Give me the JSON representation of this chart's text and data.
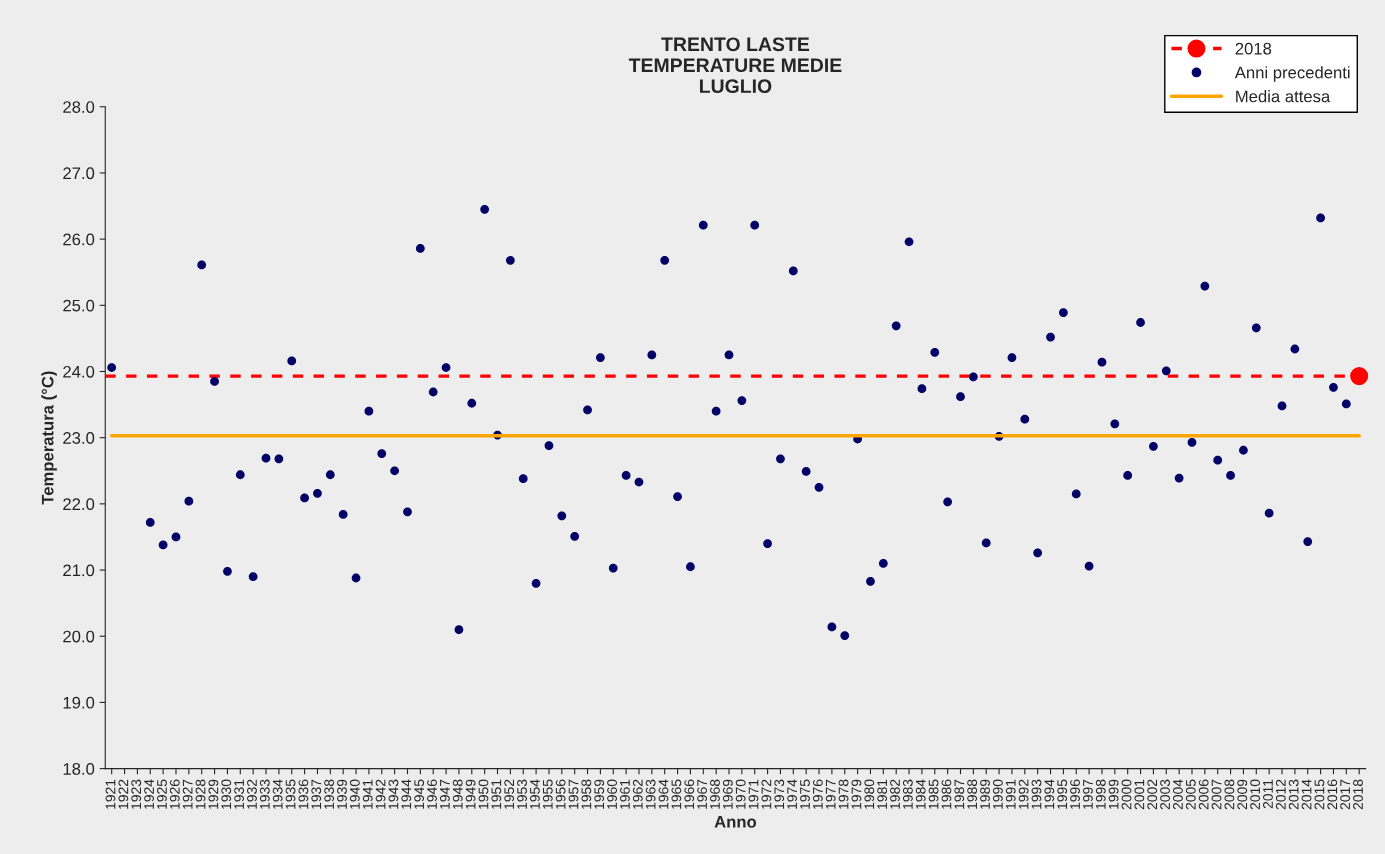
{
  "chart_data": {
    "type": "scatter",
    "title": "TRENTO LASTE\nTEMPERATURE MEDIE\nLUGLIO",
    "xlabel": "Anno",
    "ylabel": "Temperatura (°C)",
    "categories": [
      "1921",
      "1922",
      "1923",
      "1924",
      "1925",
      "1926",
      "1927",
      "1928",
      "1929",
      "1930",
      "1931",
      "1932",
      "1933",
      "1934",
      "1935",
      "1936",
      "1937",
      "1938",
      "1939",
      "1940",
      "1941",
      "1942",
      "1943",
      "1944",
      "1945",
      "1946",
      "1947",
      "1948",
      "1949",
      "1950",
      "1951",
      "1952",
      "1953",
      "1954",
      "1955",
      "1956",
      "1957",
      "1958",
      "1959",
      "1960",
      "1961",
      "1962",
      "1963",
      "1964",
      "1965",
      "1966",
      "1967",
      "1968",
      "1969",
      "1970",
      "1971",
      "1972",
      "1973",
      "1974",
      "1975",
      "1976",
      "1977",
      "1978",
      "1979",
      "1980",
      "1981",
      "1982",
      "1983",
      "1984",
      "1985",
      "1986",
      "1987",
      "1988",
      "1989",
      "1990",
      "1991",
      "1992",
      "1993",
      "1994",
      "1995",
      "1996",
      "1997",
      "1998",
      "1999",
      "2000",
      "2001",
      "2002",
      "2003",
      "2004",
      "2005",
      "2006",
      "2007",
      "2008",
      "2009",
      "2010",
      "2011",
      "2012",
      "2013",
      "2014",
      "2015",
      "2016",
      "2017",
      "2018"
    ],
    "series": [
      {
        "name": "2018",
        "type": "line",
        "color": "#ff0000",
        "line_style": "dashed",
        "marker": "circle",
        "values": [
          null,
          null,
          null,
          null,
          null,
          null,
          null,
          null,
          null,
          null,
          null,
          null,
          null,
          null,
          null,
          null,
          null,
          null,
          null,
          null,
          null,
          null,
          null,
          null,
          null,
          null,
          null,
          null,
          null,
          null,
          null,
          null,
          null,
          null,
          null,
          null,
          null,
          null,
          null,
          null,
          null,
          null,
          null,
          null,
          null,
          null,
          null,
          null,
          null,
          null,
          null,
          null,
          null,
          null,
          null,
          null,
          null,
          null,
          null,
          null,
          null,
          null,
          null,
          null,
          null,
          null,
          null,
          null,
          null,
          null,
          null,
          null,
          null,
          null,
          null,
          null,
          null,
          null,
          null,
          null,
          null,
          null,
          null,
          null,
          null,
          null,
          null,
          null,
          null,
          null,
          null,
          null,
          null,
          null,
          null,
          null,
          null,
          23.93
        ]
      },
      {
        "name": "Anni precedenti",
        "color": "#000066",
        "marker": "circle",
        "values": [
          24.06,
          null,
          null,
          21.72,
          21.38,
          21.5,
          22.04,
          25.61,
          23.85,
          20.98,
          22.44,
          20.9,
          22.69,
          22.68,
          24.16,
          22.09,
          22.16,
          22.44,
          21.84,
          20.88,
          23.4,
          22.76,
          22.5,
          21.88,
          25.86,
          23.69,
          24.06,
          20.1,
          23.52,
          26.45,
          23.04,
          25.68,
          22.38,
          20.8,
          22.88,
          21.82,
          21.51,
          23.42,
          24.21,
          21.03,
          22.43,
          22.33,
          24.25,
          25.68,
          22.11,
          21.05,
          26.21,
          23.4,
          24.25,
          23.56,
          26.21,
          21.4,
          22.68,
          25.52,
          22.49,
          22.25,
          20.14,
          20.01,
          22.98,
          20.83,
          21.1,
          24.69,
          25.96,
          23.74,
          24.29,
          22.03,
          23.62,
          23.92,
          21.41,
          23.02,
          24.21,
          23.28,
          21.26,
          24.52,
          24.89,
          22.15,
          21.06,
          24.14,
          23.21,
          22.43,
          24.74,
          22.87,
          24.01,
          22.39,
          22.93,
          25.29,
          22.66,
          22.43,
          22.81,
          24.66,
          21.86,
          23.48,
          24.34,
          21.43,
          26.32,
          23.76,
          23.51,
          null
        ]
      },
      {
        "name": "Media attesa",
        "type": "line",
        "color": "#ffa500",
        "line_style": "solid",
        "marker": "none",
        "values": [
          23.03,
          23.03,
          23.03,
          23.03,
          23.03,
          23.03,
          23.03,
          23.03,
          23.03,
          23.03,
          23.03,
          23.03,
          23.03,
          23.03,
          23.03,
          23.03,
          23.03,
          23.03,
          23.03,
          23.03,
          23.03,
          23.03,
          23.03,
          23.03,
          23.03,
          23.03,
          23.03,
          23.03,
          23.03,
          23.03,
          23.03,
          23.03,
          23.03,
          23.03,
          23.03,
          23.03,
          23.03,
          23.03,
          23.03,
          23.03,
          23.03,
          23.03,
          23.03,
          23.03,
          23.03,
          23.03,
          23.03,
          23.03,
          23.03,
          23.03,
          23.03,
          23.03,
          23.03,
          23.03,
          23.03,
          23.03,
          23.03,
          23.03,
          23.03,
          23.03,
          23.03,
          23.03,
          23.03,
          23.03,
          23.03,
          23.03,
          23.03,
          23.03,
          23.03,
          23.03,
          23.03,
          23.03,
          23.03,
          23.03,
          23.03,
          23.03,
          23.03,
          23.03,
          23.03,
          23.03,
          23.03,
          23.03,
          23.03,
          23.03,
          23.03,
          23.03,
          23.03,
          23.03,
          23.03,
          23.03,
          23.03,
          23.03,
          23.03,
          23.03,
          23.03,
          23.03,
          23.03,
          23.03
        ]
      }
    ],
    "ref_lines": [
      {
        "axis": "y",
        "value": 23.93,
        "color": "#ff0000",
        "line_style": "dashed"
      }
    ],
    "ylim": [
      18,
      28
    ],
    "yticks": [
      {
        "value": 18,
        "label": "18.0"
      },
      {
        "value": 19,
        "label": "19.0"
      },
      {
        "value": 20,
        "label": "20.0"
      },
      {
        "value": 21,
        "label": "21.0"
      },
      {
        "value": 22,
        "label": "22.0"
      },
      {
        "value": 23,
        "label": "23.0"
      },
      {
        "value": 24,
        "label": "24.0"
      },
      {
        "value": 25,
        "label": "25.0"
      },
      {
        "value": 26,
        "label": "26.0"
      },
      {
        "value": 27,
        "label": "27.0"
      },
      {
        "value": 28,
        "label": "28.0"
      }
    ],
    "grid": false,
    "legend": "top right"
  }
}
